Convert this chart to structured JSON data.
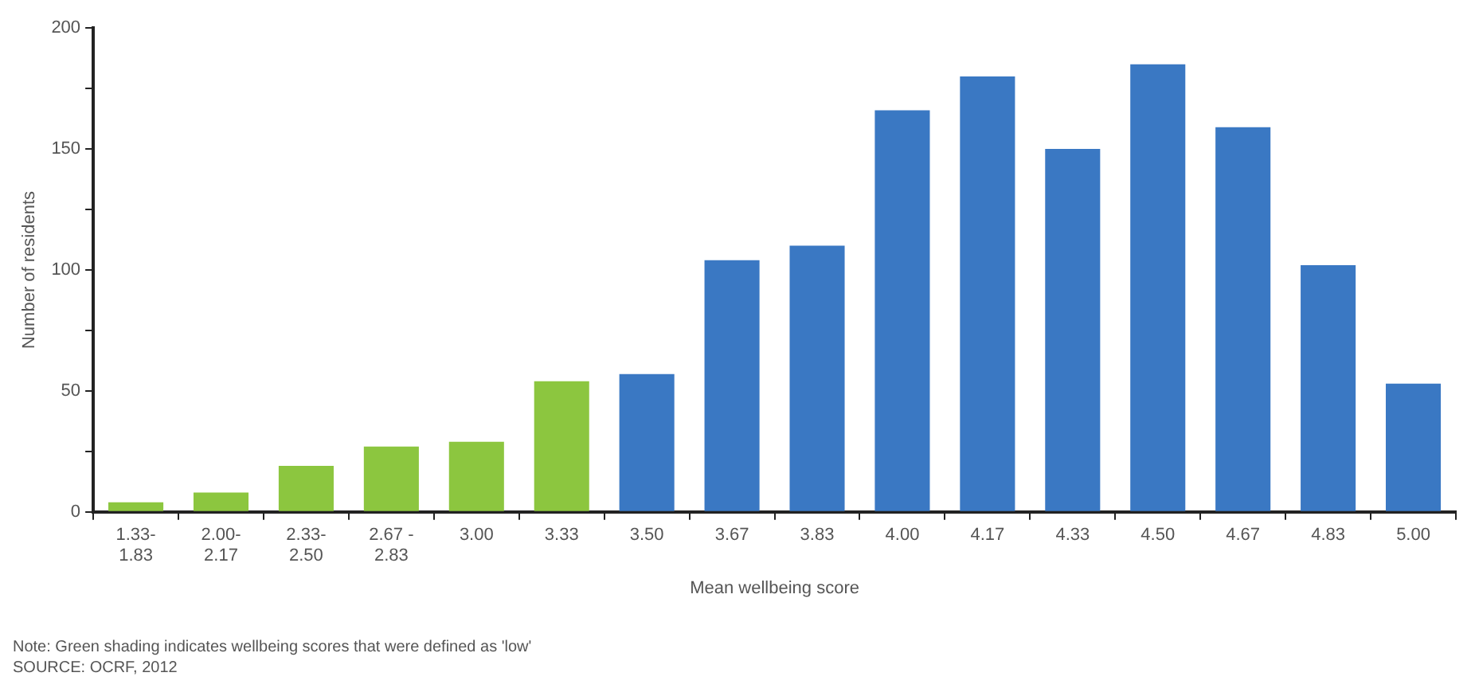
{
  "chart_data": {
    "type": "bar",
    "xlabel": "Mean wellbeing score",
    "ylabel": "Number of residents",
    "categories": [
      "1.33-\n1.83",
      "2.00-\n2.17",
      "2.33-\n2.50",
      "2.67 -\n2.83",
      "3.00",
      "3.33",
      "3.50",
      "3.67",
      "3.83",
      "4.00",
      "4.17",
      "4.33",
      "4.50",
      "4.67",
      "4.83",
      "5.00"
    ],
    "values": [
      4,
      8,
      19,
      27,
      29,
      54,
      57,
      104,
      110,
      166,
      180,
      150,
      185,
      159,
      102,
      53
    ],
    "colors": [
      "#8cc63f",
      "#8cc63f",
      "#8cc63f",
      "#8cc63f",
      "#8cc63f",
      "#8cc63f",
      "#3a78c3",
      "#3a78c3",
      "#3a78c3",
      "#3a78c3",
      "#3a78c3",
      "#3a78c3",
      "#3a78c3",
      "#3a78c3",
      "#3a78c3",
      "#3a78c3"
    ],
    "ylim": [
      0,
      200
    ],
    "yticks": [
      0,
      {
        "value": 25,
        "label": null
      },
      50,
      {
        "value": 75,
        "label": null
      },
      100,
      {
        "value": 125,
        "label": null
      },
      150,
      {
        "value": 175,
        "label": null
      },
      200
    ],
    "grid": false,
    "legend": false,
    "annotations": [
      "Note: Green shading indicates wellbeing scores that were defined as 'low'",
      "SOURCE: OCRF, 2012"
    ]
  }
}
